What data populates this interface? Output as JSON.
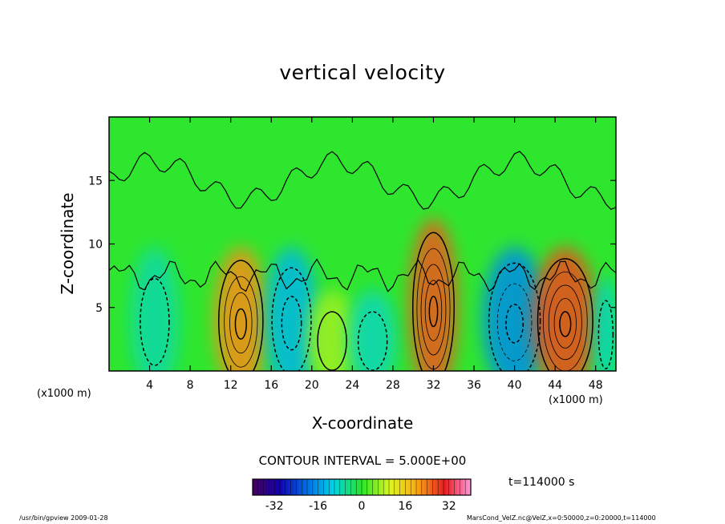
{
  "chart_data": {
    "type": "heatmap",
    "title": "vertical velocity",
    "xlabel": "X-coordinate",
    "ylabel": "Z-coordinate",
    "x_unit_left": "(x1000 m)",
    "x_unit_right": "(x1000 m)",
    "xlim": [
      0,
      50
    ],
    "ylim": [
      0,
      20
    ],
    "x_ticks": [
      4,
      8,
      12,
      16,
      20,
      24,
      28,
      32,
      36,
      40,
      44,
      48
    ],
    "y_ticks": [
      5,
      10,
      15
    ],
    "contour_interval_label": "CONTOUR INTERVAL = 5.000E+00",
    "colorbar_ticks": [
      -32,
      -16,
      0,
      16,
      32
    ],
    "colorbar_range": [
      -40,
      40
    ],
    "time_label": "t=114000 s",
    "cells": [
      {
        "x": 13,
        "z": 4,
        "w": 3.3,
        "peak": 22
      },
      {
        "x": 4.5,
        "z": 4,
        "w": 3.0,
        "peak": -7
      },
      {
        "x": 18,
        "z": 4,
        "w": 3.3,
        "peak": -13
      },
      {
        "x": 22,
        "z": 2.5,
        "w": 3.0,
        "peak": 7
      },
      {
        "x": 26,
        "z": 2.5,
        "w": 3.0,
        "peak": -8
      },
      {
        "x": 32,
        "z": 5,
        "w": 3.0,
        "peak": 26
      },
      {
        "x": 40,
        "z": 4,
        "w": 4.0,
        "peak": -17
      },
      {
        "x": 45,
        "z": 4,
        "w": 4.0,
        "peak": 27
      },
      {
        "x": 49,
        "z": 3,
        "w": 1.5,
        "peak": -9
      }
    ]
  },
  "colors": {
    "background_field": "#2fe62f",
    "contour": "#000000"
  },
  "footer": {
    "left": "/usr/bin/gpview   2009-01-28",
    "right": "MarsCond_VelZ.nc@VelZ,x=0:50000,z=0:20000,t=114000"
  }
}
